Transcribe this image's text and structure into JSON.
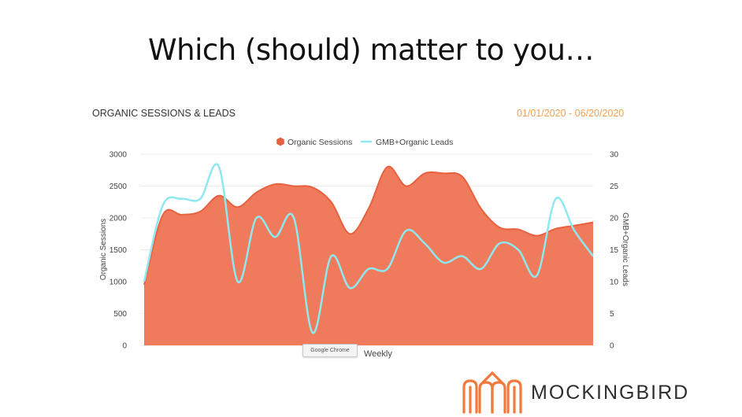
{
  "slide": {
    "title": "Which (should) matter to you…"
  },
  "header": {
    "chart_title": "ORGANIC SESSIONS & LEADS",
    "date_range": "01/01/2020 - 06/20/2020"
  },
  "tooltip": {
    "text": "Google Chrome"
  },
  "brand": {
    "name": "MOCKINGBIRD"
  },
  "colors": {
    "sessions": "#f07a5c",
    "sessions_stroke": "#e8613f",
    "leads": "#8ee8f0",
    "date_range": "#f5a053"
  },
  "chart_data": {
    "type": "area",
    "title": "ORGANIC SESSIONS & LEADS",
    "xlabel": "Weekly",
    "ylabel_left": "Organic Sessions",
    "ylabel_right": "GMB+Organic Leads",
    "ylim_left": [
      0,
      3000
    ],
    "ylim_right": [
      0,
      30
    ],
    "yticks_left": [
      0,
      500,
      1000,
      1500,
      2000,
      2500,
      3000
    ],
    "yticks_right": [
      0,
      5,
      10,
      15,
      20,
      25,
      30
    ],
    "legend_position": "top-center",
    "grid": true,
    "series": [
      {
        "name": "Organic Sessions",
        "type": "area",
        "axis": "left",
        "values": [
          950,
          2050,
          2050,
          2100,
          2350,
          2170,
          2400,
          2530,
          2500,
          2480,
          2250,
          1750,
          2150,
          2800,
          2500,
          2700,
          2700,
          2650,
          2150,
          1850,
          1820,
          1720,
          1830,
          1880,
          1930
        ]
      },
      {
        "name": "GMB+Organic Leads",
        "type": "line",
        "axis": "right",
        "values": [
          10,
          22,
          23,
          23,
          28,
          10,
          20,
          17,
          20,
          2,
          14,
          9,
          12,
          12,
          18,
          16,
          13,
          14,
          12,
          16,
          15,
          11,
          23,
          18,
          14
        ]
      }
    ]
  }
}
